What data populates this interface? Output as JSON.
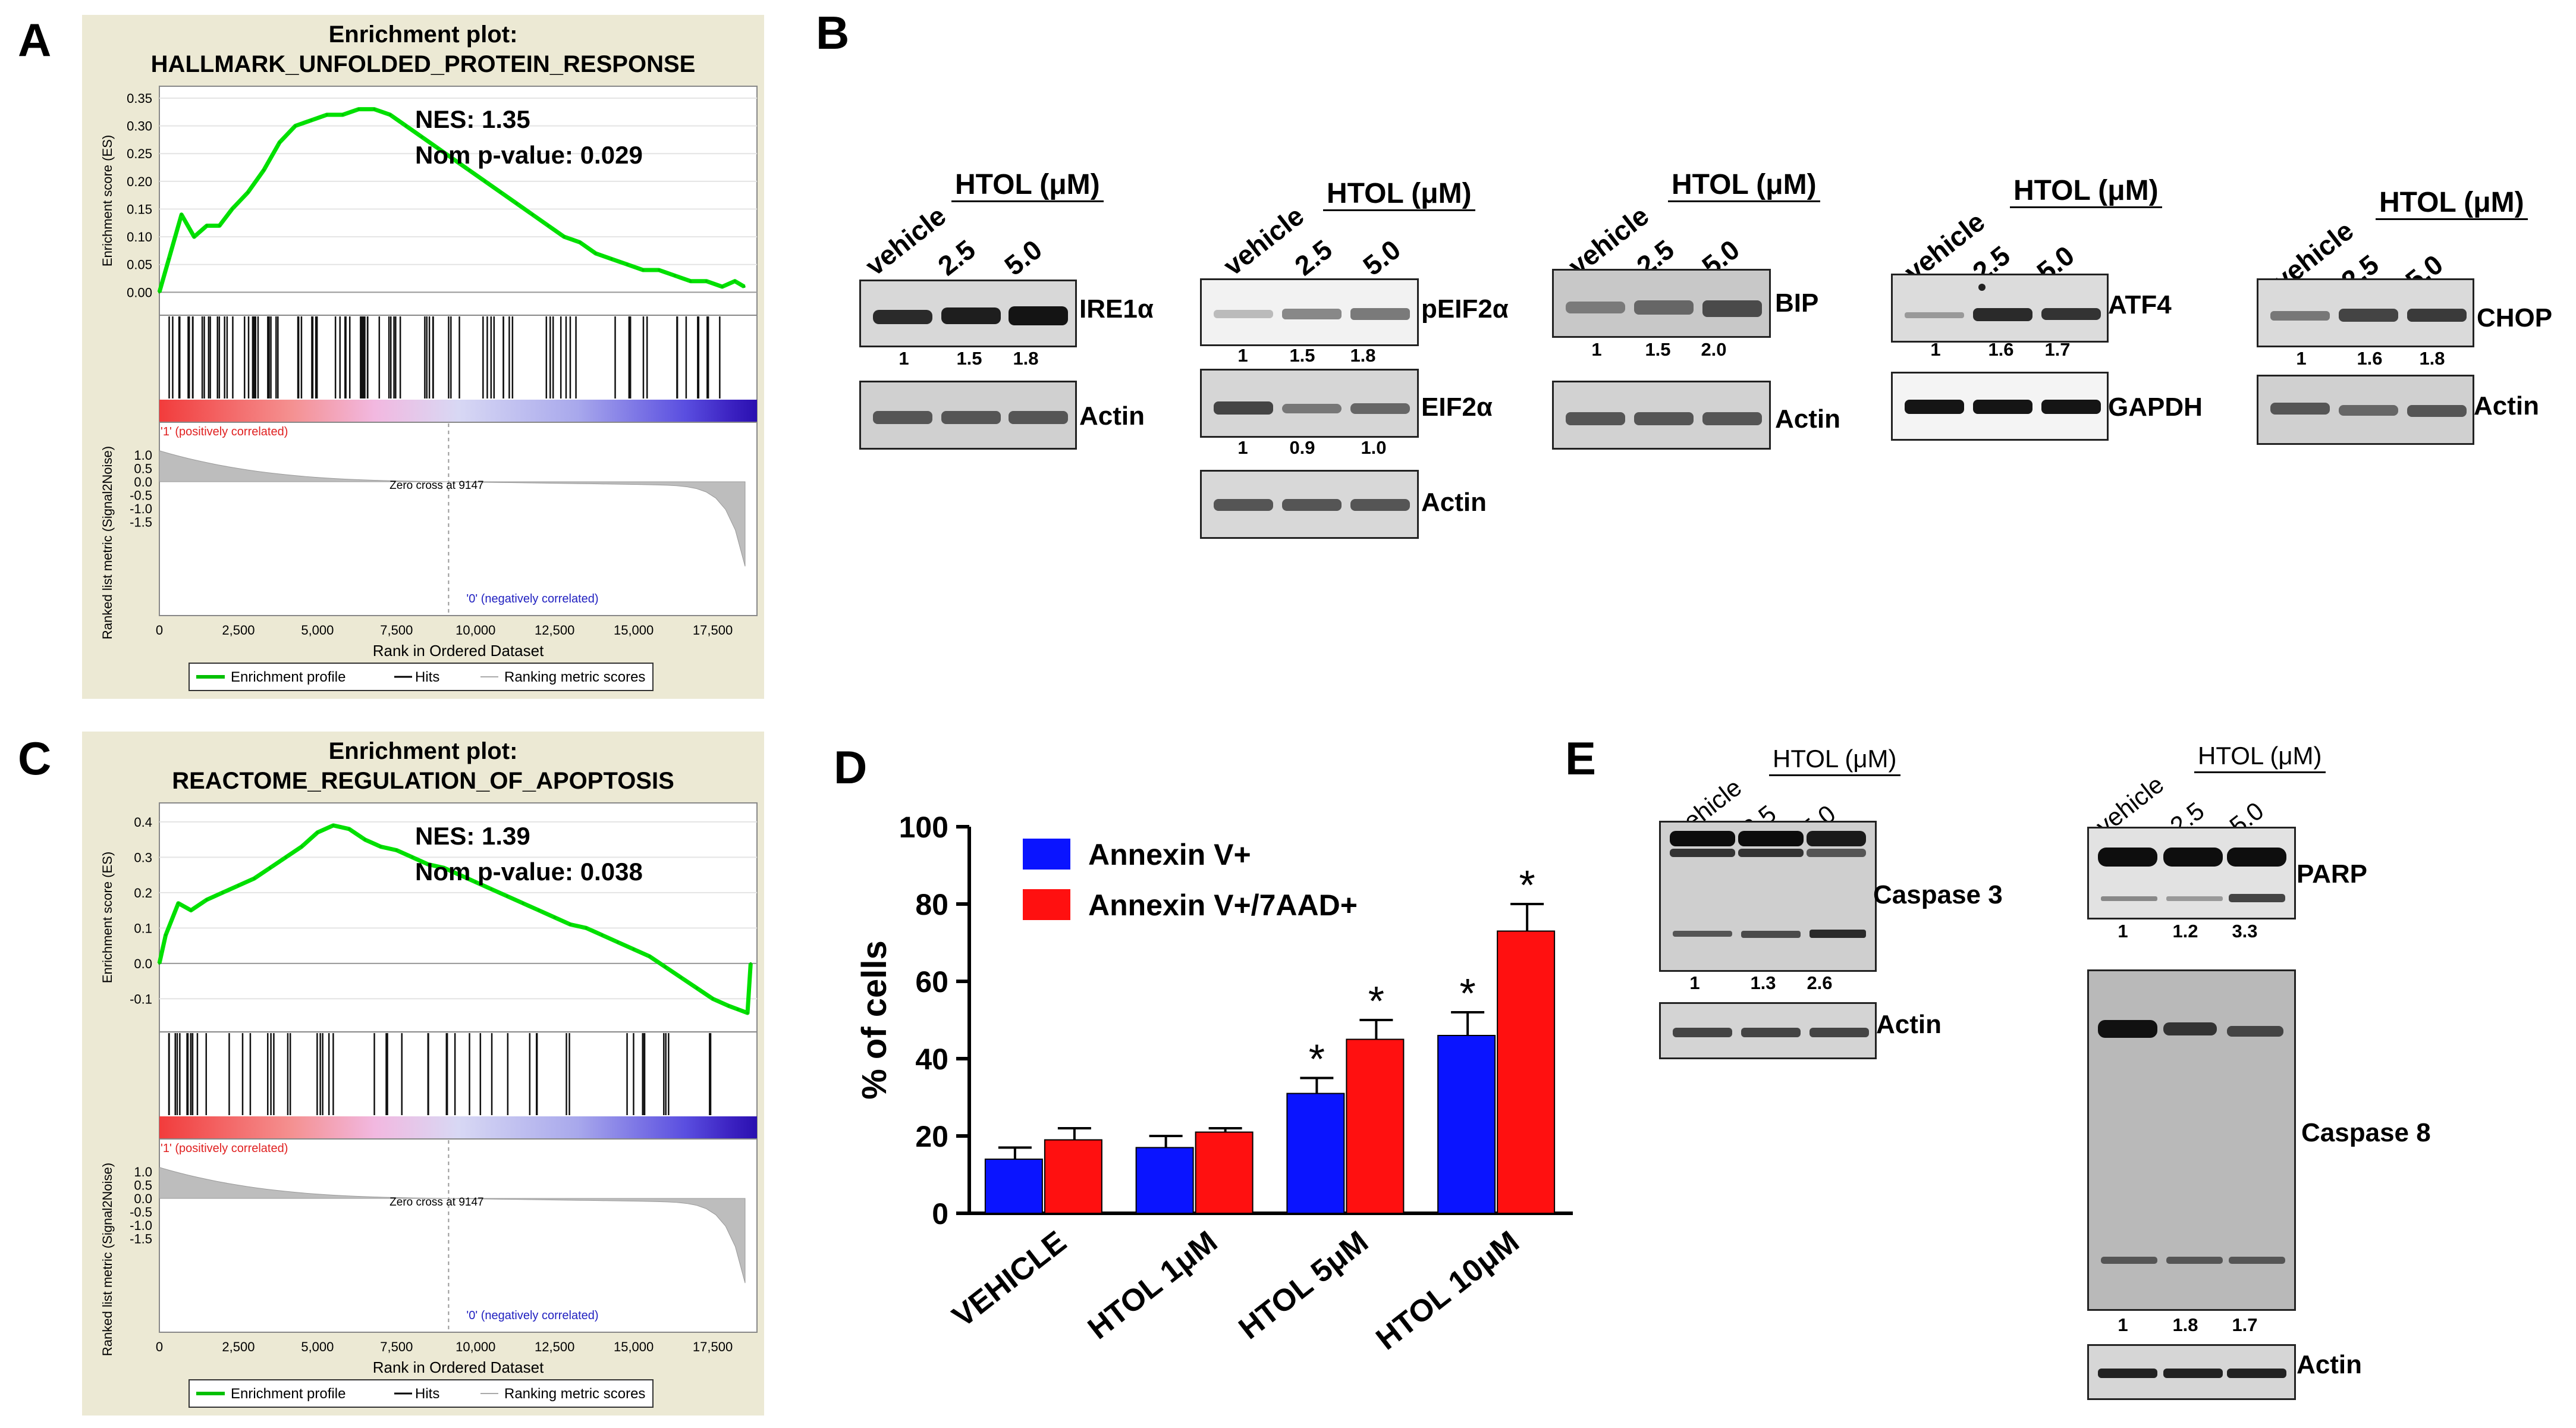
{
  "panel_letters": {
    "a": "A",
    "b": "B",
    "c": "C",
    "d": "D",
    "e": "E"
  },
  "gsea": [
    {
      "title_line1": "Enrichment plot:",
      "title_line2": "HALLMARK_UNFOLDED_PROTEIN_RESPONSE",
      "nes": "NES: 1.35",
      "pvalue": "Nom p-value: 0.029",
      "es_ylabel": "Enrichment score (ES)",
      "es_ticks": [
        "0.35",
        "0.30",
        "0.25",
        "0.20",
        "0.15",
        "0.10",
        "0.05",
        "0.00"
      ],
      "rank_ylabel": "Ranked list metric (Signal2Noise)",
      "rank_ticks": [
        "1.0",
        "0.5",
        "0.0",
        "-0.5",
        "-1.0",
        "-1.5"
      ],
      "x_ticks": [
        "0",
        "2,500",
        "5,000",
        "7,500",
        "10,000",
        "12,500",
        "15,000",
        "17,500"
      ],
      "xlabel": "Rank in Ordered Dataset",
      "pos_label": "'1' (positively correlated)",
      "neg_label": "'0' (negatively correlated)",
      "zero_cross": "Zero cross at 9147",
      "legend": [
        "Enrichment profile",
        "Hits",
        "Ranking metric scores"
      ],
      "chart_data": {
        "type": "line",
        "x": [
          0,
          300,
          700,
          1100,
          1500,
          1900,
          2300,
          2800,
          3300,
          3800,
          4300,
          4800,
          5300,
          5800,
          6300,
          6800,
          7300,
          7800,
          8300,
          8800,
          9300,
          9800,
          10300,
          10800,
          11300,
          11800,
          12300,
          12800,
          13300,
          13800,
          14300,
          14800,
          15300,
          15800,
          16300,
          16800,
          17300,
          17800,
          18200,
          18500
        ],
        "y": [
          0.0,
          0.06,
          0.14,
          0.1,
          0.12,
          0.12,
          0.15,
          0.18,
          0.22,
          0.27,
          0.3,
          0.31,
          0.32,
          0.32,
          0.33,
          0.33,
          0.32,
          0.3,
          0.28,
          0.26,
          0.24,
          0.22,
          0.2,
          0.18,
          0.16,
          0.14,
          0.12,
          0.1,
          0.09,
          0.07,
          0.06,
          0.05,
          0.04,
          0.04,
          0.03,
          0.02,
          0.02,
          0.01,
          0.02,
          0.01
        ],
        "ylim": [
          -0.02,
          0.35
        ],
        "xlim": [
          0,
          18900
        ]
      }
    },
    {
      "title_line1": "Enrichment plot:",
      "title_line2": "REACTOME_REGULATION_OF_APOPTOSIS",
      "nes": "NES: 1.39",
      "pvalue": "Nom p-value: 0.038",
      "es_ylabel": "Enrichment score (ES)",
      "es_ticks": [
        "0.4",
        "0.3",
        "0.2",
        "0.1",
        "0.0",
        "-0.1"
      ],
      "rank_ylabel": "Ranked list metric (Signal2Noise)",
      "rank_ticks": [
        "1.0",
        "0.5",
        "0.0",
        "-0.5",
        "-1.0",
        "-1.5"
      ],
      "x_ticks": [
        "0",
        "2,500",
        "5,000",
        "7,500",
        "10,000",
        "12,500",
        "15,000",
        "17,500"
      ],
      "xlabel": "Rank in Ordered Dataset",
      "pos_label": "'1' (positively correlated)",
      "neg_label": "'0' (negatively correlated)",
      "zero_cross": "Zero cross at 9147",
      "legend": [
        "Enrichment profile",
        "Hits",
        "Ranking metric scores"
      ],
      "chart_data": {
        "type": "line",
        "x": [
          0,
          200,
          600,
          1000,
          1500,
          2000,
          2500,
          3000,
          3500,
          4000,
          4500,
          5000,
          5500,
          6000,
          6500,
          7000,
          7500,
          8000,
          8500,
          9000,
          9500,
          10000,
          10500,
          11000,
          11500,
          12000,
          12500,
          13000,
          13500,
          14000,
          14500,
          15000,
          15500,
          16000,
          16500,
          17000,
          17500,
          18000,
          18300,
          18600,
          18700
        ],
        "y": [
          0.0,
          0.08,
          0.17,
          0.15,
          0.18,
          0.2,
          0.22,
          0.24,
          0.27,
          0.3,
          0.33,
          0.37,
          0.39,
          0.38,
          0.35,
          0.33,
          0.32,
          0.3,
          0.28,
          0.27,
          0.25,
          0.23,
          0.21,
          0.19,
          0.17,
          0.15,
          0.13,
          0.11,
          0.1,
          0.08,
          0.06,
          0.04,
          0.02,
          -0.01,
          -0.04,
          -0.07,
          -0.1,
          -0.12,
          -0.13,
          -0.14,
          0.0
        ],
        "ylim": [
          -0.16,
          0.42
        ],
        "xlim": [
          0,
          18900
        ]
      }
    }
  ],
  "blots_b": {
    "htol_label": "HTOL (μM)",
    "lanes": [
      "vehicle",
      "2.5",
      "5.0"
    ],
    "groups": [
      {
        "bands": [
          {
            "name": "IRE1α",
            "quant": [
              "1",
              "1.5",
              "1.8"
            ]
          },
          {
            "name": "Actin",
            "quant": []
          }
        ]
      },
      {
        "bands": [
          {
            "name": "pEIF2α",
            "quant": [
              "1",
              "1.5",
              "1.8"
            ]
          },
          {
            "name": "EIF2α",
            "quant": [
              "1",
              "0.9",
              "1.0"
            ]
          },
          {
            "name": "Actin",
            "quant": []
          }
        ]
      },
      {
        "bands": [
          {
            "name": "BIP",
            "quant": [
              "1",
              "1.5",
              "2.0"
            ]
          },
          {
            "name": "Actin",
            "quant": []
          }
        ]
      },
      {
        "bands": [
          {
            "name": "ATF4",
            "quant": [
              "1",
              "1.6",
              "1.7"
            ]
          },
          {
            "name": "GAPDH",
            "quant": []
          }
        ]
      },
      {
        "bands": [
          {
            "name": "CHOP",
            "quant": [
              "1",
              "1.6",
              "1.8"
            ]
          },
          {
            "name": "Actin",
            "quant": []
          }
        ]
      }
    ]
  },
  "bar_chart": {
    "ylabel": "% of cells",
    "y_ticks": [
      "0",
      "20",
      "40",
      "60",
      "80",
      "100"
    ],
    "legend": [
      "Annexin V+",
      "Annexin V+/7AAD+"
    ],
    "colors": {
      "annexin": "#0a14ff",
      "annexin_7aad": "#ff1010"
    },
    "significance_mark": "*",
    "chart_data": {
      "type": "bar",
      "categories": [
        "VEHICLE",
        "HTOL 1μM",
        "HTOL 5μM",
        "HTOL 10μM"
      ],
      "series": [
        {
          "name": "Annexin V+",
          "values": [
            14,
            17,
            31,
            46
          ],
          "errors": [
            3,
            3,
            4,
            6
          ],
          "significant": [
            false,
            false,
            true,
            true
          ]
        },
        {
          "name": "Annexin V+/7AAD+",
          "values": [
            19,
            21,
            45,
            73
          ],
          "errors": [
            3,
            1,
            5,
            7
          ],
          "significant": [
            false,
            false,
            true,
            true
          ]
        }
      ],
      "ylabel": "% of cells",
      "ylim": [
        0,
        100
      ]
    }
  },
  "blots_e": {
    "htol_label": "HTOL (μM)",
    "lanes": [
      "vehicle",
      "2.5",
      "5.0"
    ],
    "left": {
      "bands": [
        {
          "name": "Caspase 3",
          "quant": [
            "1",
            "1.3",
            "2.6"
          ]
        },
        {
          "name": "Actin",
          "quant": []
        }
      ]
    },
    "right": {
      "bands": [
        {
          "name": "PARP",
          "quant": [
            "1",
            "1.2",
            "3.3"
          ]
        },
        {
          "name": "Caspase 8",
          "quant": [
            "1",
            "1.8",
            "1.7"
          ]
        },
        {
          "name": "Actin",
          "quant": []
        }
      ]
    }
  }
}
